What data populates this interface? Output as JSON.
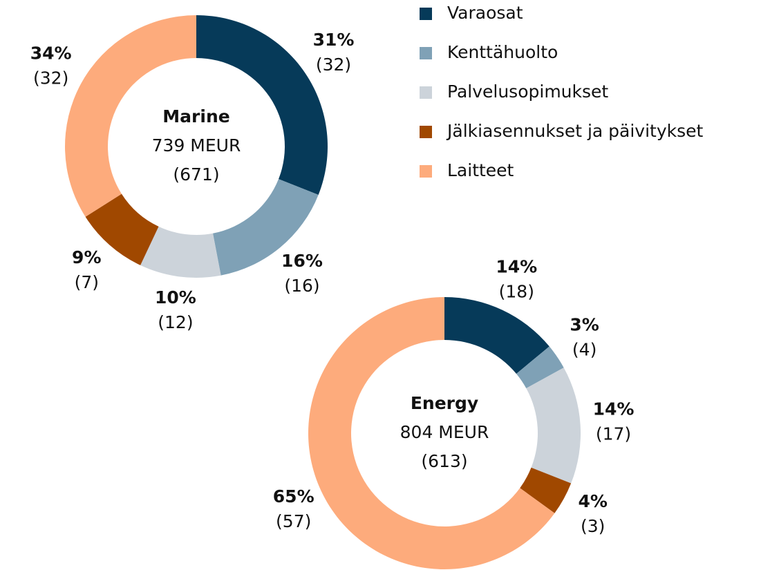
{
  "chart_data": [
    {
      "type": "donut",
      "center_title": "Marine",
      "center_value": "739 MEUR",
      "center_previous": "(671)",
      "categories": [
        "Varaosat",
        "Kenttähuolto",
        "Palvelusopimukset",
        "Jälkiasennukset ja päivitykset",
        "Laitteet"
      ],
      "values": [
        31,
        16,
        10,
        9,
        34
      ],
      "value_labels": [
        "31%",
        "16%",
        "10%",
        "9%",
        "34%"
      ],
      "previous_labels": [
        "(32)",
        "(16)",
        "(12)",
        "(7)",
        "(32)"
      ],
      "colors": [
        "#063a59",
        "#7fa1b6",
        "#ccd3da",
        "#a04800",
        "#fdab7c"
      ]
    },
    {
      "type": "donut",
      "center_title": "Energy",
      "center_value": "804 MEUR",
      "center_previous": "(613)",
      "categories": [
        "Varaosat",
        "Kenttähuolto",
        "Palvelusopimukset",
        "Jälkiasennukset ja päivitykset",
        "Laitteet"
      ],
      "values": [
        14,
        3,
        14,
        4,
        65
      ],
      "value_labels": [
        "14%",
        "3%",
        "14%",
        "4%",
        "65%"
      ],
      "previous_labels": [
        "(18)",
        "(4)",
        "(17)",
        "(3)",
        "(57)"
      ],
      "colors": [
        "#063a59",
        "#7fa1b6",
        "#ccd3da",
        "#a04800",
        "#fdab7c"
      ]
    }
  ]
}
